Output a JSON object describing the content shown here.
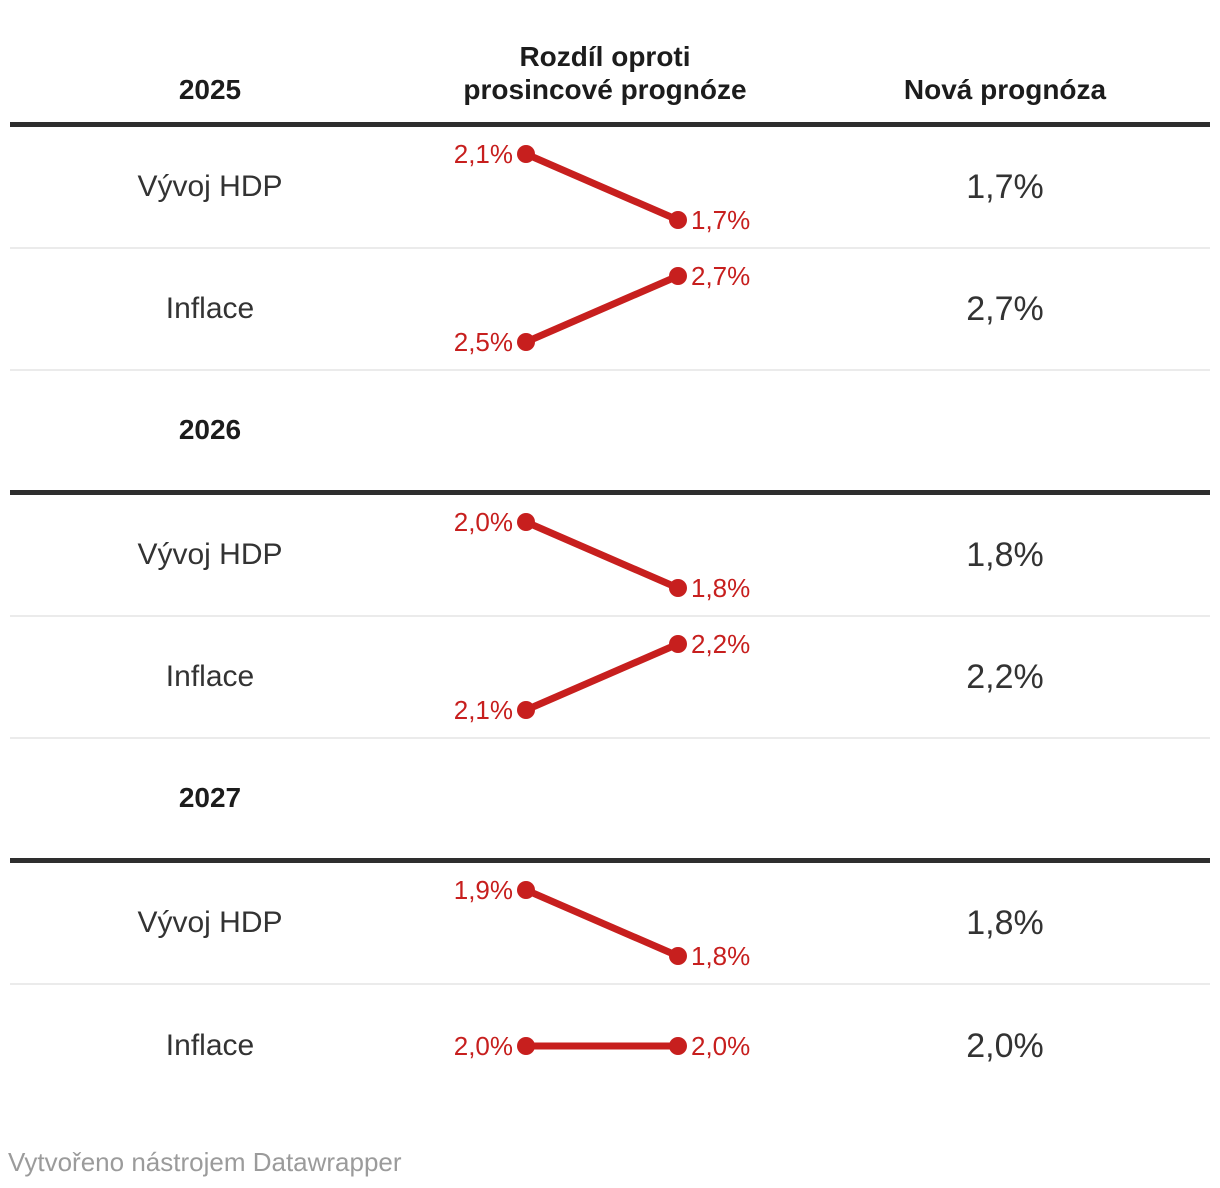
{
  "colors": {
    "accent_red": "#c71f1e",
    "strong_border": "#2e2e2e",
    "light_divider": "#ebebeb",
    "header_text": "#1c1c1c",
    "body_text": "#333333",
    "footer_text": "#9b9b9b"
  },
  "chart_data": {
    "type": "table",
    "title": "",
    "columns": [
      "",
      "Rozdíl oproti prosincové prognóze",
      "Nová prognóza"
    ],
    "header": {
      "diff_line1": "Rozdíl oproti",
      "diff_line2": "prosincové prognóze",
      "new_forecast": "Nová prognóza"
    },
    "legend_note": "slope charts show December forecast vs new forecast, values in percent, decimal comma",
    "sections": [
      {
        "year": "2025",
        "rows": [
          {
            "label": "Vývoj HDP",
            "old_value": 2.1,
            "new_value": 1.7,
            "old_text": "2,1%",
            "new_text": "1,7%",
            "forecast_text": "1,7%"
          },
          {
            "label": "Inflace",
            "old_value": 2.5,
            "new_value": 2.7,
            "old_text": "2,5%",
            "new_text": "2,7%",
            "forecast_text": "2,7%"
          }
        ]
      },
      {
        "year": "2026",
        "rows": [
          {
            "label": "Vývoj HDP",
            "old_value": 2.0,
            "new_value": 1.8,
            "old_text": "2,0%",
            "new_text": "1,8%",
            "forecast_text": "1,8%"
          },
          {
            "label": "Inflace",
            "old_value": 2.1,
            "new_value": 2.2,
            "old_text": "2,1%",
            "new_text": "2,2%",
            "forecast_text": "2,2%"
          }
        ]
      },
      {
        "year": "2027",
        "rows": [
          {
            "label": "Vývoj HDP",
            "old_value": 1.9,
            "new_value": 1.8,
            "old_text": "1,9%",
            "new_text": "1,8%",
            "forecast_text": "1,8%"
          },
          {
            "label": "Inflace",
            "old_value": 2.0,
            "new_value": 2.0,
            "old_text": "2,0%",
            "new_text": "2,0%",
            "forecast_text": "2,0%"
          }
        ]
      }
    ]
  },
  "footer": {
    "credit": "Vytvořeno nástrojem Datawrapper"
  }
}
